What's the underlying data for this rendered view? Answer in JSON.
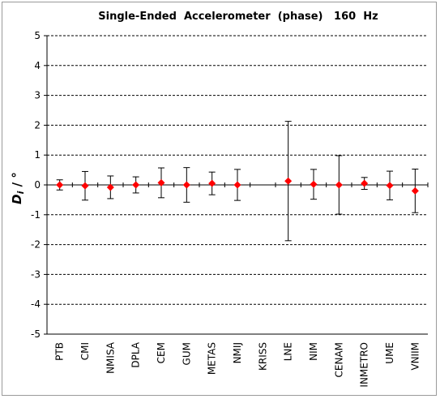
{
  "chart_data": {
    "type": "scatter",
    "title": "Single-Ended  Accelerometer  (phase)   160  Hz",
    "ylabel_main": "D",
    "ylabel_sub": "i",
    "ylabel_unit": " / °",
    "xlabel": "",
    "ylim": [
      -5,
      5
    ],
    "yticks": [
      -5,
      -4,
      -3,
      -2,
      -1,
      0,
      1,
      2,
      3,
      4,
      5
    ],
    "grid": "horizontal-dashed",
    "marker_color": "#ff0000",
    "categories": [
      "PTB",
      "CMI",
      "NMISA",
      "DPLA",
      "CEM",
      "GUM",
      "METAS",
      "NMIJ",
      "KRISS",
      "LNE",
      "NIM",
      "CENAM",
      "INMETRO",
      "UME",
      "VNIIM"
    ],
    "values": [
      0.0,
      -0.03,
      -0.08,
      0.0,
      0.07,
      0.0,
      0.05,
      0.0,
      null,
      0.13,
      0.02,
      0.0,
      0.05,
      -0.02,
      -0.2
    ],
    "errors": [
      0.17,
      0.48,
      0.38,
      0.27,
      0.5,
      0.58,
      0.38,
      0.52,
      null,
      2.0,
      0.5,
      0.98,
      0.2,
      0.48,
      0.73
    ]
  }
}
